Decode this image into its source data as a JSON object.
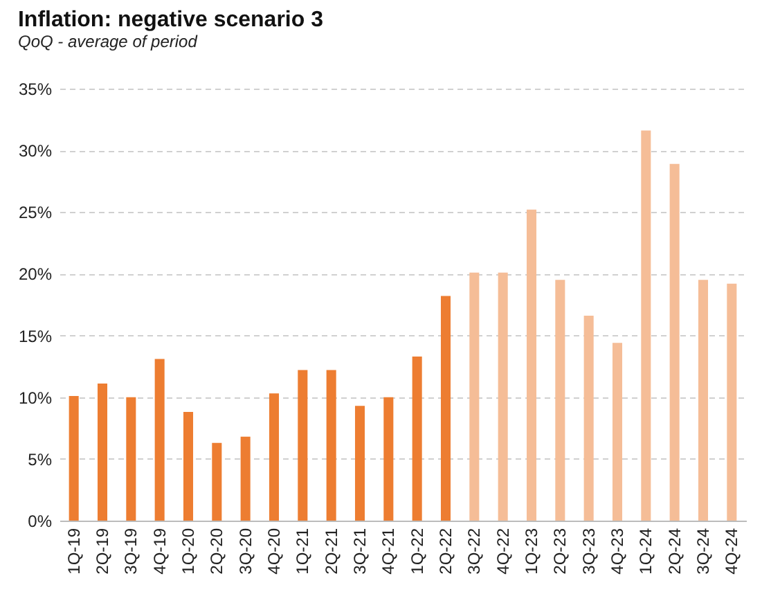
{
  "chart_data": {
    "type": "bar",
    "title": "Inflation: negative scenario 3",
    "subtitle": "QoQ - average of period",
    "categories": [
      "1Q-19",
      "2Q-19",
      "3Q-19",
      "4Q-19",
      "1Q-20",
      "2Q-20",
      "3Q-20",
      "4Q-20",
      "1Q-21",
      "2Q-21",
      "3Q-21",
      "4Q-21",
      "1Q-22",
      "2Q-22",
      "3Q-22",
      "4Q-22",
      "1Q-23",
      "2Q-23",
      "3Q-23",
      "4Q-23",
      "1Q-24",
      "2Q-24",
      "3Q-24",
      "4Q-24"
    ],
    "values": [
      10.1,
      11.1,
      10.0,
      13.1,
      8.8,
      6.3,
      6.8,
      10.3,
      12.2,
      12.2,
      9.3,
      10.0,
      13.3,
      18.2,
      20.1,
      20.1,
      25.2,
      19.5,
      16.6,
      14.4,
      31.6,
      28.9,
      19.5,
      19.2
    ],
    "colors": [
      "#ed7d31",
      "#ed7d31",
      "#ed7d31",
      "#ed7d31",
      "#ed7d31",
      "#ed7d31",
      "#ed7d31",
      "#ed7d31",
      "#ed7d31",
      "#ed7d31",
      "#ed7d31",
      "#ed7d31",
      "#ed7d31",
      "#ed7d31",
      "#f5bd97",
      "#f5bd97",
      "#f5bd97",
      "#f5bd97",
      "#f5bd97",
      "#f5bd97",
      "#f5bd97",
      "#f5bd97",
      "#f5bd97",
      "#f5bd97"
    ],
    "ylim": [
      0,
      35
    ],
    "yticks": [
      {
        "value": 0,
        "label": "0%"
      },
      {
        "value": 5,
        "label": "5%"
      },
      {
        "value": 10,
        "label": "10%"
      },
      {
        "value": 15,
        "label": "15%"
      },
      {
        "value": 20,
        "label": "20%"
      },
      {
        "value": 25,
        "label": "25%"
      },
      {
        "value": 30,
        "label": "30%"
      },
      {
        "value": 35,
        "label": "35%"
      }
    ],
    "grid": "y"
  }
}
